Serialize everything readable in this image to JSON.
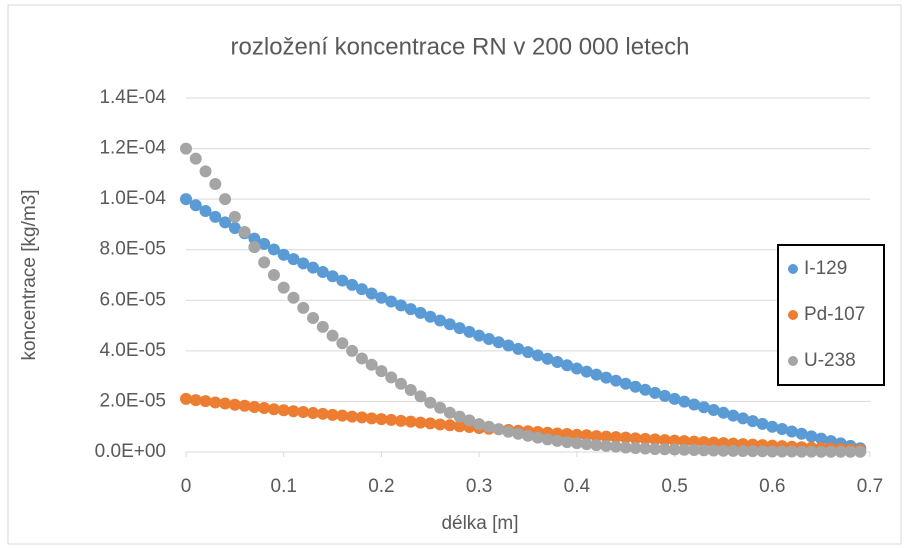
{
  "chart_data": {
    "type": "scatter",
    "title": "rozložení koncentrace RN v 200 000 letech",
    "xlabel": "délka [m]",
    "ylabel": "koncentrace [kg/m3]",
    "x": [
      0,
      0.01,
      0.02,
      0.03,
      0.04,
      0.05,
      0.06,
      0.07,
      0.08,
      0.09,
      0.1,
      0.11,
      0.12,
      0.13,
      0.14,
      0.15,
      0.16,
      0.17,
      0.18,
      0.19,
      0.2,
      0.21,
      0.22,
      0.23,
      0.24,
      0.25,
      0.26,
      0.27,
      0.28,
      0.29,
      0.3,
      0.31,
      0.32,
      0.33,
      0.34,
      0.35,
      0.36,
      0.37,
      0.38,
      0.39,
      0.4,
      0.41,
      0.42,
      0.43,
      0.44,
      0.45,
      0.46,
      0.47,
      0.48,
      0.49,
      0.5,
      0.51,
      0.52,
      0.53,
      0.54,
      0.55,
      0.56,
      0.57,
      0.58,
      0.59,
      0.6,
      0.61,
      0.62,
      0.63,
      0.64,
      0.65,
      0.66,
      0.67,
      0.68,
      0.69
    ],
    "series": [
      {
        "name": "I-129",
        "color": "#5b9bd5",
        "values": [
          0.0001,
          9.76e-05,
          9.53e-05,
          9.3e-05,
          9.08e-05,
          8.86e-05,
          8.65e-05,
          8.44e-05,
          8.23e-05,
          8.01e-05,
          7.8e-05,
          7.63e-05,
          7.46e-05,
          7.29e-05,
          7.12e-05,
          6.95e-05,
          6.78e-05,
          6.61e-05,
          6.44e-05,
          6.27e-05,
          6.1e-05,
          5.95e-05,
          5.8e-05,
          5.65e-05,
          5.5e-05,
          5.35e-05,
          5.2e-05,
          5.05e-05,
          4.9e-05,
          4.75e-05,
          4.6e-05,
          4.47e-05,
          4.34e-05,
          4.21e-05,
          4.08e-05,
          3.95e-05,
          3.82e-05,
          3.69e-05,
          3.56e-05,
          3.43e-05,
          3.3e-05,
          3.18e-05,
          3.06e-05,
          2.94e-05,
          2.82e-05,
          2.7e-05,
          2.58e-05,
          2.46e-05,
          2.34e-05,
          2.22e-05,
          2.1e-05,
          1.99e-05,
          1.88e-05,
          1.77e-05,
          1.66e-05,
          1.55e-05,
          1.44e-05,
          1.33e-05,
          1.22e-05,
          1.11e-05,
          1e-05,
          9.1e-06,
          8.1e-06,
          7.2e-06,
          6.2e-06,
          5.3e-06,
          4.3e-06,
          3.4e-06,
          2.4e-06,
          1.5e-06
        ]
      },
      {
        "name": "Pd-107",
        "color": "#ed7d31",
        "values": [
          2.1e-05,
          2.05e-05,
          2.01e-05,
          1.96e-05,
          1.92e-05,
          1.87e-05,
          1.83e-05,
          1.78e-05,
          1.74e-05,
          1.69e-05,
          1.65e-05,
          1.61e-05,
          1.58e-05,
          1.54e-05,
          1.51e-05,
          1.47e-05,
          1.44e-05,
          1.4e-05,
          1.37e-05,
          1.33e-05,
          1.3e-05,
          1.27e-05,
          1.23e-05,
          1.2e-05,
          1.16e-05,
          1.13e-05,
          1.09e-05,
          1.06e-05,
          1.02e-05,
          9.9e-06,
          9.5e-06,
          9.2e-06,
          9e-06,
          8.7e-06,
          8.4e-06,
          8.2e-06,
          7.9e-06,
          7.6e-06,
          7.3e-06,
          7.1e-06,
          6.8e-06,
          6.6e-06,
          6.3e-06,
          6.1e-06,
          5.9e-06,
          5.7e-06,
          5.4e-06,
          5.2e-06,
          5e-06,
          4.7e-06,
          4.5e-06,
          4.3e-06,
          4.1e-06,
          3.9e-06,
          3.7e-06,
          3.5e-06,
          3.3e-06,
          3.1e-06,
          2.9e-06,
          2.7e-06,
          2.5e-06,
          2.3e-06,
          2.1e-06,
          1.9e-06,
          1.7e-06,
          1.6e-06,
          1.4e-06,
          1.2e-06,
          1e-06,
          8e-07
        ]
      },
      {
        "name": "U-238",
        "color": "#a5a5a5",
        "values": [
          0.00012,
          0.000116,
          0.000111,
          0.000106,
          0.0001,
          9.3e-05,
          8.7e-05,
          8.1e-05,
          7.5e-05,
          7e-05,
          6.5e-05,
          6.1e-05,
          5.7e-05,
          5.3e-05,
          4.95e-05,
          4.6e-05,
          4.3e-05,
          4e-05,
          3.7e-05,
          3.45e-05,
          3.2e-05,
          2.95e-05,
          2.7e-05,
          2.45e-05,
          2.2e-05,
          1.95e-05,
          1.75e-05,
          1.55e-05,
          1.4e-05,
          1.25e-05,
          1.1e-05,
          1e-05,
          9e-06,
          8e-06,
          7.2e-06,
          6.4e-06,
          5.7e-06,
          5e-06,
          4.4e-06,
          3.9e-06,
          3.5e-06,
          3.1e-06,
          2.7e-06,
          2.4e-06,
          2.1e-06,
          1.8e-06,
          1.6e-06,
          1.4e-06,
          1.2e-06,
          1.1e-06,
          1e-06,
          9e-07,
          8e-07,
          7e-07,
          6e-07,
          5e-07,
          4.5e-07,
          4e-07,
          3.5e-07,
          3e-07,
          2e-07,
          2e-07,
          2e-07,
          1.5e-07,
          1.5e-07,
          1e-07,
          1e-07,
          1e-07,
          1e-07,
          1e-07
        ]
      }
    ],
    "xlim": [
      0,
      0.7
    ],
    "xticks": [
      0,
      0.1,
      0.2,
      0.3,
      0.4,
      0.5,
      0.6,
      0.7
    ],
    "ylim": [
      0,
      0.00014
    ],
    "yticks": [
      {
        "value": 0,
        "label": "0.0E+00"
      },
      {
        "value": 2e-05,
        "label": "2.0E-05"
      },
      {
        "value": 4e-05,
        "label": "4.0E-05"
      },
      {
        "value": 6e-05,
        "label": "6.0E-05"
      },
      {
        "value": 8e-05,
        "label": "8.0E-05"
      },
      {
        "value": 0.0001,
        "label": "1.0E-04"
      },
      {
        "value": 0.00012,
        "label": "1.2E-04"
      },
      {
        "value": 0.00014,
        "label": "1.4E-04"
      }
    ],
    "grid": true,
    "legend": "right"
  }
}
